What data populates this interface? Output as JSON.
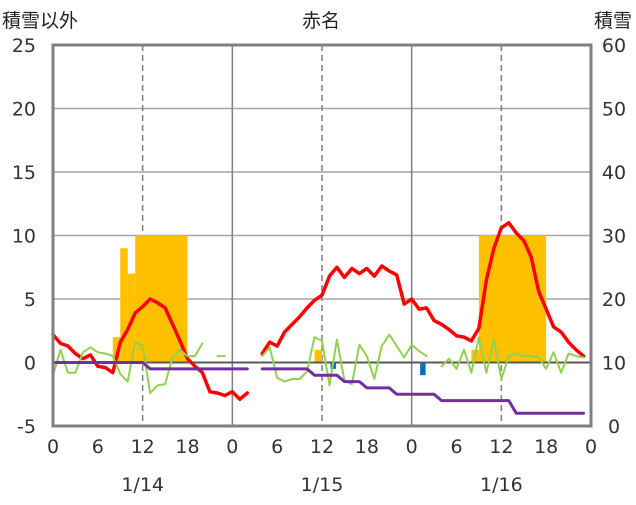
{
  "chart_data": {
    "type": "line",
    "title": "赤名",
    "ylabel_left": "積雪以外",
    "ylabel_right": "積雪",
    "ylim_left": [
      -5,
      25
    ],
    "yticks_left": [
      -5,
      0,
      5,
      10,
      15,
      20,
      25
    ],
    "ylim_right": [
      0,
      60
    ],
    "yticks_right": [
      0,
      10,
      20,
      30,
      40,
      50,
      60
    ],
    "xlim": [
      0,
      72
    ],
    "xticks": [
      0,
      6,
      12,
      18,
      24,
      30,
      36,
      42,
      48,
      54,
      60,
      66,
      72
    ],
    "xtick_labels": [
      "0",
      "6",
      "12",
      "18",
      "0",
      "6",
      "12",
      "18",
      "0",
      "6",
      "12",
      "18",
      "0"
    ],
    "day_boundaries": [
      24,
      48
    ],
    "dashed_noon_lines": [
      12,
      36,
      60
    ],
    "dates": [
      {
        "label": "1/14",
        "x": 12
      },
      {
        "label": "1/15",
        "x": 36
      },
      {
        "label": "1/16",
        "x": 60
      }
    ],
    "colors": {
      "temperature": "#ff0000",
      "wind": "#92d050",
      "snow_depth": "#7030a0",
      "snowfall": "#ffc000",
      "precip": "#0070c0"
    },
    "bars_snowfall": [
      {
        "x": 8,
        "w": 1,
        "v": 2
      },
      {
        "x": 9,
        "w": 1,
        "v": 9
      },
      {
        "x": 10,
        "w": 1,
        "v": 7
      },
      {
        "x": 11,
        "w": 7,
        "v": 10
      },
      {
        "x": 35,
        "w": 1,
        "v": 1
      },
      {
        "x": 56,
        "w": 1,
        "v": 1
      },
      {
        "x": 57,
        "w": 9,
        "v": 10
      }
    ],
    "bars_precip": [
      {
        "x": 37,
        "w": 1,
        "v": -0.5
      },
      {
        "x": 49,
        "w": 1,
        "v": -1
      }
    ],
    "series": [
      {
        "key": "temperature",
        "axis": "left",
        "stroke_width": 3.5,
        "segments": [
          [
            [
              0,
              2.2
            ],
            [
              1,
              1.5
            ],
            [
              2,
              1.3
            ],
            [
              3,
              0.7
            ],
            [
              4,
              0.3
            ],
            [
              5,
              0.6
            ],
            [
              6,
              -0.3
            ],
            [
              7,
              -0.4
            ],
            [
              8,
              -0.8
            ],
            [
              9,
              1.6
            ],
            [
              10,
              2.6
            ],
            [
              11,
              3.9
            ],
            [
              12,
              4.4
            ],
            [
              13,
              5.0
            ],
            [
              14,
              4.7
            ],
            [
              15,
              4.3
            ],
            [
              16,
              3.0
            ],
            [
              17,
              1.7
            ],
            [
              18,
              0.3
            ],
            [
              19,
              -0.3
            ],
            [
              20,
              -0.8
            ],
            [
              21,
              -2.3
            ],
            [
              22,
              -2.4
            ],
            [
              23,
              -2.6
            ],
            [
              24,
              -2.3
            ],
            [
              25,
              -2.9
            ],
            [
              26,
              -2.4
            ]
          ],
          [
            [
              28,
              0.7
            ],
            [
              29,
              1.6
            ],
            [
              30,
              1.3
            ],
            [
              31,
              2.4
            ],
            [
              32,
              3.0
            ],
            [
              33,
              3.6
            ],
            [
              34,
              4.3
            ],
            [
              35,
              4.9
            ],
            [
              36,
              5.3
            ],
            [
              37,
              6.8
            ],
            [
              38,
              7.5
            ],
            [
              39,
              6.7
            ],
            [
              40,
              7.4
            ],
            [
              41,
              7.0
            ],
            [
              42,
              7.4
            ],
            [
              43,
              6.8
            ],
            [
              44,
              7.6
            ],
            [
              45,
              7.2
            ],
            [
              46,
              6.9
            ],
            [
              47,
              4.6
            ],
            [
              48,
              5.0
            ],
            [
              49,
              4.2
            ],
            [
              50,
              4.3
            ],
            [
              51,
              3.3
            ],
            [
              52,
              3.0
            ],
            [
              53,
              2.6
            ],
            [
              54,
              2.1
            ],
            [
              55,
              2.0
            ],
            [
              56,
              1.7
            ],
            [
              57,
              2.7
            ],
            [
              58,
              6.5
            ],
            [
              59,
              9.0
            ],
            [
              60,
              10.6
            ],
            [
              61,
              11.0
            ],
            [
              62,
              10.2
            ],
            [
              63,
              9.6
            ],
            [
              64,
              8.3
            ],
            [
              65,
              5.6
            ],
            [
              66,
              4.2
            ],
            [
              67,
              2.8
            ],
            [
              68,
              2.4
            ],
            [
              69,
              1.6
            ],
            [
              70,
              1.0
            ],
            [
              71,
              0.5
            ]
          ]
        ]
      },
      {
        "key": "wind",
        "axis": "left",
        "stroke_width": 2,
        "segments": [
          [
            [
              0,
              -1.0
            ],
            [
              1,
              1.0
            ],
            [
              2,
              -0.8
            ],
            [
              3,
              -0.8
            ],
            [
              4,
              0.8
            ],
            [
              5,
              1.2
            ],
            [
              6,
              0.8
            ],
            [
              7,
              0.7
            ],
            [
              8,
              0.5
            ],
            [
              9,
              -0.9
            ],
            [
              10,
              -1.5
            ],
            [
              11,
              1.6
            ],
            [
              12,
              1.3
            ],
            [
              13,
              -2.4
            ],
            [
              14,
              -1.8
            ],
            [
              15,
              -1.7
            ],
            [
              16,
              0.4
            ],
            [
              17,
              1.0
            ],
            [
              18,
              0.5
            ],
            [
              19,
              0.5
            ],
            [
              20,
              1.5
            ]
          ],
          [
            [
              22,
              0.5
            ],
            [
              23,
              0.5
            ]
          ],
          [
            [
              28,
              0.5
            ],
            [
              29,
              1.2
            ],
            [
              30,
              -1.2
            ],
            [
              31,
              -1.5
            ],
            [
              32,
              -1.3
            ],
            [
              33,
              -1.3
            ],
            [
              34,
              -0.7
            ],
            [
              35,
              2.0
            ],
            [
              36,
              1.7
            ],
            [
              37,
              -1.8
            ],
            [
              38,
              1.8
            ],
            [
              39,
              -1.4
            ],
            [
              40,
              -1.7
            ],
            [
              41,
              1.4
            ],
            [
              42,
              0.5
            ],
            [
              43,
              -1.3
            ],
            [
              44,
              1.3
            ],
            [
              45,
              2.2
            ],
            [
              46,
              1.3
            ],
            [
              47,
              0.4
            ],
            [
              48,
              1.4
            ],
            [
              49,
              0.9
            ],
            [
              50,
              0.5
            ]
          ],
          [
            [
              52,
              -0.3
            ],
            [
              53,
              0.3
            ],
            [
              54,
              -0.5
            ],
            [
              55,
              1.0
            ],
            [
              56,
              -0.8
            ],
            [
              57,
              2.0
            ],
            [
              58,
              -0.8
            ],
            [
              59,
              1.8
            ],
            [
              60,
              -1.3
            ],
            [
              61,
              0.5
            ],
            [
              62,
              0.7
            ],
            [
              63,
              0.5
            ],
            [
              64,
              0.5
            ],
            [
              65,
              0.4
            ],
            [
              66,
              -0.5
            ],
            [
              67,
              0.8
            ],
            [
              68,
              -0.8
            ],
            [
              69,
              0.7
            ],
            [
              70,
              0.5
            ],
            [
              71,
              0.4
            ]
          ]
        ]
      },
      {
        "key": "snow_depth",
        "axis": "left",
        "stroke_width": 3,
        "segments": [
          [
            [
              0,
              0
            ],
            [
              12,
              0
            ],
            [
              13,
              -0.5
            ],
            [
              26,
              -0.5
            ]
          ],
          [
            [
              28,
              -0.5
            ],
            [
              34,
              -0.5
            ],
            [
              35,
              -1.0
            ],
            [
              38,
              -1.0
            ],
            [
              39,
              -1.5
            ],
            [
              41,
              -1.5
            ],
            [
              42,
              -2.0
            ],
            [
              45,
              -2.0
            ],
            [
              46,
              -2.5
            ],
            [
              51,
              -2.5
            ],
            [
              52,
              -3.0
            ],
            [
              61,
              -3.0
            ],
            [
              62,
              -4.0
            ],
            [
              71,
              -4.0
            ]
          ]
        ]
      }
    ]
  }
}
